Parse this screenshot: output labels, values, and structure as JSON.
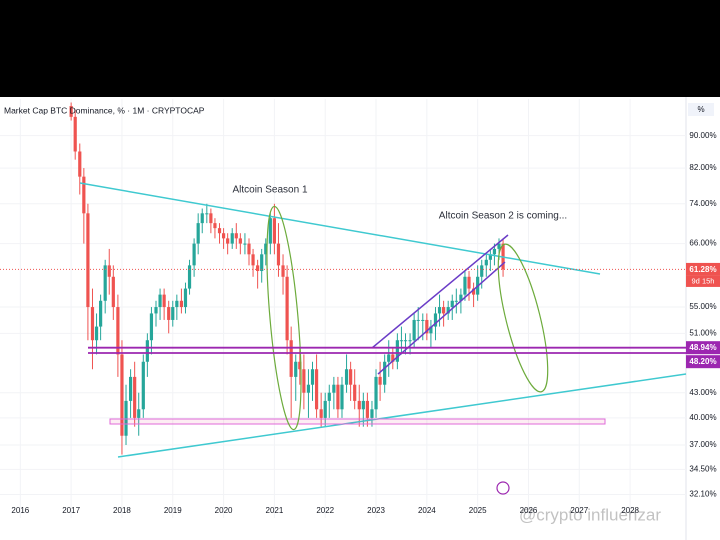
{
  "chart_data": {
    "type": "candlestick",
    "title": "Market Cap BTC Dominance, % · 1M · CRYPTOCAP",
    "annotations": [
      "Altcoin Season 1",
      "Altcoin Season 2 is coming..."
    ],
    "watermark": "@crypto influenzar",
    "axis_unit": "%",
    "countdown": "9d 15h",
    "log_scale": true,
    "up_color": "#26a69a",
    "down_color": "#ef5350",
    "xlim": [
      2015.6,
      2029.1
    ],
    "xticks": [
      2016,
      2017,
      2018,
      2019,
      2020,
      2021,
      2022,
      2023,
      2024,
      2025,
      2026,
      2027,
      2028
    ],
    "ylim": [
      30,
      100
    ],
    "yticks": [
      {
        "value": 90,
        "label": "90.00%"
      },
      {
        "value": 82,
        "label": "82.00%"
      },
      {
        "value": 74,
        "label": "74.00%"
      },
      {
        "value": 66,
        "label": "66.00%"
      },
      {
        "value": 55,
        "label": "55.00%"
      },
      {
        "value": 51,
        "label": "51.00%"
      },
      {
        "value": 43,
        "label": "43.00%"
      },
      {
        "value": 40,
        "label": "40.00%"
      },
      {
        "value": 37,
        "label": "37.00%"
      },
      {
        "value": 34.5,
        "label": "34.50%"
      },
      {
        "value": 32.1,
        "label": "32.10%"
      }
    ],
    "price_lines": [
      {
        "value": 61.28,
        "label": "61.28%",
        "color": "#ef5350",
        "style": "dotted"
      },
      {
        "value": 48.94,
        "label": "48.94%",
        "color": "#9c27b0",
        "style": "solid"
      },
      {
        "value": 48.2,
        "label": "48.20%",
        "color": "#9c27b0",
        "style": "solid"
      }
    ],
    "x": [
      2017.0,
      2017.08,
      2017.17,
      2017.25,
      2017.33,
      2017.42,
      2017.5,
      2017.58,
      2017.67,
      2017.75,
      2017.83,
      2017.92,
      2018.0,
      2018.08,
      2018.17,
      2018.25,
      2018.33,
      2018.42,
      2018.5,
      2018.58,
      2018.67,
      2018.75,
      2018.83,
      2018.92,
      2019.0,
      2019.08,
      2019.17,
      2019.25,
      2019.33,
      2019.42,
      2019.5,
      2019.58,
      2019.67,
      2019.75,
      2019.83,
      2019.92,
      2020.0,
      2020.08,
      2020.17,
      2020.25,
      2020.33,
      2020.42,
      2020.5,
      2020.58,
      2020.67,
      2020.75,
      2020.83,
      2020.92,
      2021.0,
      2021.08,
      2021.17,
      2021.25,
      2021.33,
      2021.42,
      2021.5,
      2021.58,
      2021.67,
      2021.75,
      2021.83,
      2021.92,
      2022.0,
      2022.08,
      2022.17,
      2022.25,
      2022.33,
      2022.42,
      2022.5,
      2022.58,
      2022.67,
      2022.75,
      2022.83,
      2022.92,
      2023.0,
      2023.08,
      2023.17,
      2023.25,
      2023.33,
      2023.42,
      2023.5,
      2023.58,
      2023.67,
      2023.75,
      2023.83,
      2023.92,
      2024.0,
      2024.08,
      2024.17,
      2024.25,
      2024.33,
      2024.42,
      2024.5,
      2024.58,
      2024.67,
      2024.75,
      2024.83,
      2024.92,
      2025.0,
      2025.08,
      2025.17,
      2025.25,
      2025.33,
      2025.42,
      2025.5
    ],
    "open": [
      98,
      95,
      86,
      80,
      72,
      55,
      50,
      52,
      56,
      62,
      60,
      55,
      48,
      38,
      42,
      45,
      40,
      41,
      47,
      50,
      54,
      55,
      57,
      55,
      53,
      55,
      56,
      55,
      58,
      62,
      66,
      70,
      72,
      72,
      70,
      69,
      68,
      67,
      66,
      68,
      67,
      66,
      66,
      64,
      62,
      61,
      64,
      66,
      71,
      66,
      62,
      60,
      50,
      45,
      47,
      46,
      43,
      44,
      46,
      41,
      40,
      42,
      43,
      44,
      41,
      44,
      46,
      44,
      42,
      41,
      42,
      40,
      41,
      45,
      44,
      47,
      48,
      47,
      50,
      50,
      50,
      50,
      53,
      53,
      53,
      51,
      52,
      54,
      55,
      54,
      55,
      56,
      56,
      57,
      60,
      58,
      57,
      60,
      62,
      63,
      64,
      65,
      66
    ],
    "high": [
      99,
      97,
      88,
      82,
      74,
      58,
      54,
      57,
      63,
      65,
      62,
      57,
      50,
      44,
      46,
      47,
      43,
      48,
      51,
      55,
      56,
      58,
      58,
      56,
      56,
      57,
      58,
      59,
      63,
      67,
      72,
      73,
      74,
      73,
      71,
      70,
      69,
      68,
      69,
      70,
      68,
      68,
      67,
      65,
      63,
      65,
      67,
      72,
      74,
      70,
      64,
      62,
      52,
      48,
      49,
      48,
      46,
      47,
      48,
      43,
      43,
      44,
      45,
      45,
      45,
      48,
      47,
      46,
      44,
      43,
      43,
      42,
      46,
      47,
      48,
      50,
      49,
      51,
      52,
      51,
      51,
      54,
      55,
      54,
      54,
      53,
      55,
      57,
      56,
      56,
      57,
      58,
      58,
      61,
      61,
      59,
      62,
      63,
      64,
      65,
      66,
      67,
      67
    ],
    "low": [
      94,
      84,
      76,
      66,
      50,
      46,
      48,
      50,
      54,
      57,
      53,
      45,
      36,
      37,
      40,
      39,
      38,
      40,
      45,
      48,
      52,
      53,
      53,
      51,
      52,
      53,
      54,
      54,
      57,
      60,
      64,
      68,
      70,
      68,
      67,
      66,
      65,
      64,
      65,
      65,
      64,
      64,
      62,
      60,
      58,
      59,
      62,
      64,
      64,
      60,
      57,
      48,
      40,
      42,
      44,
      41,
      40,
      42,
      40,
      39,
      39,
      40,
      41,
      40,
      40,
      43,
      42,
      41,
      39,
      39,
      39,
      39,
      40,
      42,
      43,
      45,
      46,
      46,
      48,
      48,
      48,
      49,
      50,
      50,
      50,
      49,
      50,
      52,
      52,
      53,
      53,
      54,
      54,
      56,
      56,
      55,
      56,
      58,
      60,
      61,
      62,
      63,
      60
    ],
    "close": [
      95,
      86,
      80,
      72,
      55,
      50,
      52,
      56,
      62,
      60,
      55,
      48,
      38,
      42,
      45,
      40,
      41,
      47,
      50,
      54,
      55,
      57,
      55,
      53,
      55,
      56,
      55,
      58,
      62,
      66,
      70,
      72,
      72,
      70,
      69,
      68,
      67,
      66,
      68,
      67,
      66,
      66,
      64,
      62,
      61,
      64,
      66,
      71,
      66,
      62,
      60,
      50,
      45,
      47,
      46,
      43,
      44,
      46,
      41,
      40,
      42,
      43,
      44,
      41,
      44,
      46,
      44,
      42,
      41,
      42,
      40,
      41,
      45,
      44,
      47,
      48,
      47,
      50,
      50,
      50,
      50,
      53,
      53,
      53,
      51,
      52,
      54,
      55,
      54,
      55,
      56,
      56,
      57,
      60,
      58,
      57,
      60,
      62,
      63,
      64,
      65,
      66,
      61.28
    ]
  }
}
